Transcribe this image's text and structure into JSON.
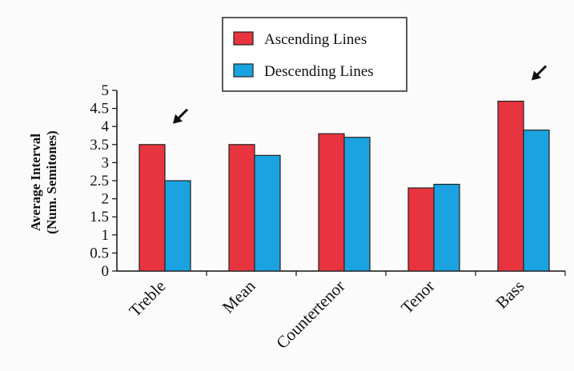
{
  "chart_data": {
    "type": "bar",
    "categories": [
      "Treble",
      "Mean",
      "Countertenor",
      "Tenor",
      "Bass"
    ],
    "series": [
      {
        "name": "Ascending Lines",
        "values": [
          3.5,
          3.5,
          3.8,
          2.3,
          4.7
        ]
      },
      {
        "name": "Descending Lines",
        "values": [
          2.5,
          3.2,
          3.7,
          2.4,
          3.9
        ]
      }
    ],
    "ylabel_line1": "Average Interval",
    "ylabel_line2": "(Num. Semitones)",
    "ylim": [
      0,
      5
    ],
    "yticks": [
      "0",
      "0.5",
      "1",
      "1.5",
      "2",
      "2.5",
      "3",
      "3.5",
      "4",
      "4.5",
      "5"
    ],
    "grid": false,
    "legend_position": "top-center",
    "annotations": [
      {
        "type": "arrow",
        "category": "Treble"
      },
      {
        "type": "arrow",
        "category": "Bass"
      }
    ],
    "colors": {
      "Ascending Lines": "#e8343f",
      "Descending Lines": "#1aa3e0"
    }
  }
}
